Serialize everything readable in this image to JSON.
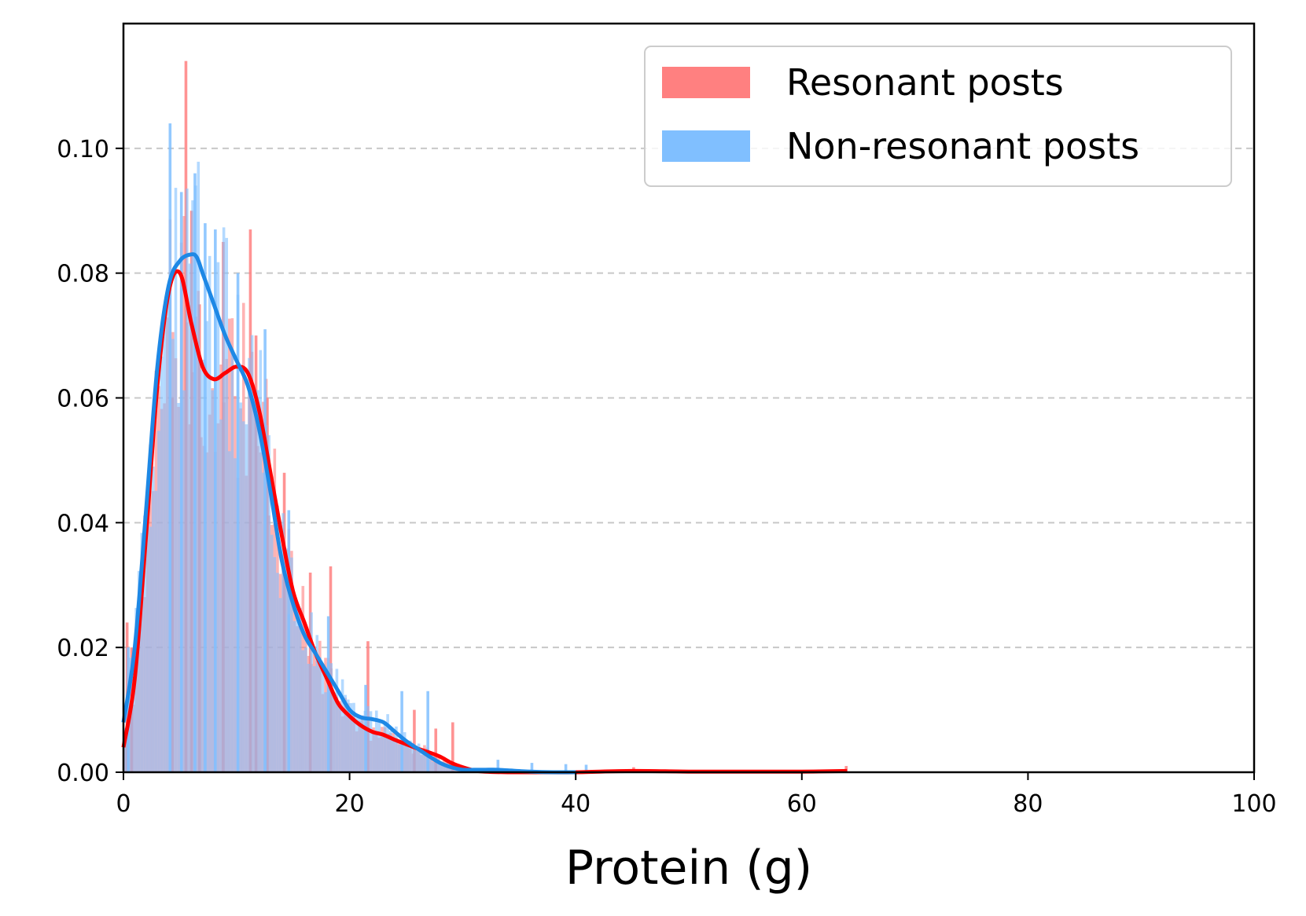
{
  "chart_data": {
    "type": "histogram",
    "title": "",
    "xlabel": "Protein (g)",
    "ylabel": "",
    "xlim": [
      0,
      100
    ],
    "ylim": [
      0,
      0.12
    ],
    "x_ticks": [
      0,
      20,
      40,
      60,
      80,
      100
    ],
    "x_tick_labels": [
      "0",
      "20",
      "40",
      "60",
      "80",
      "100"
    ],
    "y_ticks": [
      0.0,
      0.02,
      0.04,
      0.06,
      0.08,
      0.1
    ],
    "y_tick_labels": [
      "0.00",
      "0.02",
      "0.04",
      "0.06",
      "0.08",
      "0.10"
    ],
    "grid": "y-dashed",
    "legend_position": "top-right",
    "series": [
      {
        "name": "Resonant posts",
        "color": "#ff8080",
        "line_color": "#ff0000",
        "kde_x": [
          0,
          1,
          2,
          3,
          4,
          5,
          6,
          7,
          8,
          9,
          10,
          11,
          12,
          13,
          14,
          15,
          16,
          17,
          18,
          19,
          20,
          21,
          22,
          23,
          24,
          25,
          26,
          27,
          28,
          29,
          30,
          31,
          32,
          34,
          36,
          40,
          45,
          50,
          55,
          60,
          64
        ],
        "kde_y": [
          0.004,
          0.015,
          0.038,
          0.062,
          0.077,
          0.08,
          0.072,
          0.065,
          0.063,
          0.064,
          0.065,
          0.064,
          0.058,
          0.048,
          0.038,
          0.029,
          0.024,
          0.019,
          0.015,
          0.011,
          0.009,
          0.0075,
          0.0065,
          0.006,
          0.0052,
          0.0045,
          0.0038,
          0.0032,
          0.0025,
          0.0015,
          0.0008,
          0.0003,
          0.0001,
          0.0,
          0.0,
          0.0,
          0.0002,
          0.0001,
          0.0001,
          0.0001,
          0.0002
        ],
        "spikes": [
          [
            0.2,
            0.024
          ],
          [
            0.6,
            0.02
          ],
          [
            4.2,
            0.06
          ],
          [
            5.4,
            0.114
          ],
          [
            5.9,
            0.09
          ],
          [
            6.6,
            0.075
          ],
          [
            8.7,
            0.085
          ],
          [
            11.1,
            0.087
          ],
          [
            11.6,
            0.07
          ],
          [
            12.6,
            0.06
          ],
          [
            14.1,
            0.048
          ],
          [
            16.4,
            0.032
          ],
          [
            18.2,
            0.033
          ],
          [
            21.5,
            0.021
          ],
          [
            25.6,
            0.01
          ],
          [
            27.5,
            0.007
          ],
          [
            29.0,
            0.008
          ],
          [
            45.0,
            0.0008
          ],
          [
            63.8,
            0.001
          ]
        ]
      },
      {
        "name": "Non-resonant posts",
        "color": "#80bfff",
        "line_color": "#1e88e5",
        "kde_x": [
          0,
          1,
          2,
          3,
          4,
          5,
          6,
          6.5,
          7,
          8,
          9,
          10,
          11,
          12,
          13,
          14,
          15,
          16,
          17,
          18,
          19,
          20,
          21,
          22,
          23,
          24,
          25,
          26,
          27,
          28,
          29,
          30,
          31,
          32,
          33,
          34,
          36,
          38,
          40
        ],
        "kde_y": [
          0.008,
          0.02,
          0.042,
          0.065,
          0.078,
          0.082,
          0.083,
          0.0825,
          0.08,
          0.075,
          0.07,
          0.066,
          0.062,
          0.055,
          0.045,
          0.034,
          0.027,
          0.022,
          0.019,
          0.016,
          0.013,
          0.01,
          0.0088,
          0.0085,
          0.008,
          0.0065,
          0.005,
          0.0038,
          0.0026,
          0.0015,
          0.0008,
          0.0004,
          0.0004,
          0.0004,
          0.0004,
          0.0003,
          0.0001,
          0.0,
          0.0
        ],
        "spikes": [
          [
            0.3,
            0.02
          ],
          [
            4.0,
            0.104
          ],
          [
            5.0,
            0.093
          ],
          [
            6.2,
            0.096
          ],
          [
            7.1,
            0.088
          ],
          [
            8.0,
            0.087
          ],
          [
            10.0,
            0.08
          ],
          [
            12.4,
            0.071
          ],
          [
            14.5,
            0.042
          ],
          [
            18.0,
            0.025
          ],
          [
            21.3,
            0.014
          ],
          [
            24.5,
            0.013
          ],
          [
            26.8,
            0.013
          ],
          [
            33.0,
            0.002
          ],
          [
            36.0,
            0.0015
          ],
          [
            39.0,
            0.0013
          ],
          [
            40.8,
            0.0012
          ]
        ]
      }
    ]
  }
}
